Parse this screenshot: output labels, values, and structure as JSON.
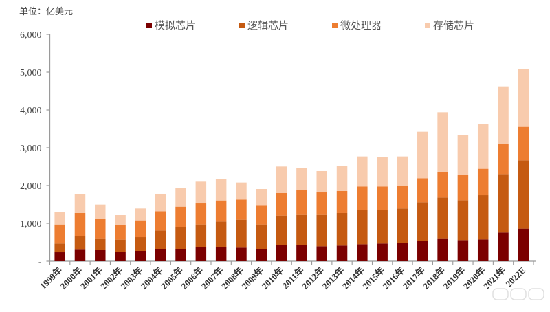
{
  "unit_label": "单位：亿美元",
  "legend": [
    {
      "label": "模拟芯片",
      "color": "#7B0000",
      "x": 213
    },
    {
      "label": "逻辑芯片",
      "color": "#C55A11",
      "x": 348
    },
    {
      "label": "微处理器",
      "color": "#ED7D31",
      "x": 483
    },
    {
      "label": "存储芯片",
      "color": "#F8CBAD",
      "x": 618
    }
  ],
  "chart_data": {
    "type": "bar",
    "stacked": true,
    "title": "",
    "unit": "单位：亿美元",
    "xlabel": "",
    "ylabel": "亿美元",
    "ylim": [
      0,
      6000
    ],
    "yticks": [
      0,
      1000,
      2000,
      3000,
      4000,
      5000,
      6000
    ],
    "ytick_labels": [
      "-",
      "1,000",
      "2,000",
      "3,000",
      "4,000",
      "5,000",
      "6,000"
    ],
    "grid": false,
    "legend_position": "top",
    "categories": [
      "1999年",
      "2000年",
      "2001年",
      "2002年",
      "2003年",
      "2004年",
      "2005年",
      "2006年",
      "2007年",
      "2008年",
      "2009年",
      "2010年",
      "2011年",
      "2012年",
      "2013年",
      "2014年",
      "2015年",
      "2016年",
      "2017年",
      "2018年",
      "2019年",
      "2020年",
      "2021年",
      "2022E"
    ],
    "series": [
      {
        "name": "模拟芯片",
        "color": "#7B0000",
        "values": [
          236,
          303,
          291,
          248,
          273,
          327,
          327,
          376,
          382,
          358,
          327,
          424,
          430,
          394,
          412,
          448,
          467,
          485,
          539,
          588,
          558,
          576,
          758,
          861
        ]
      },
      {
        "name": "逻辑芯片",
        "color": "#C55A11",
        "values": [
          231,
          364,
          297,
          322,
          363,
          485,
          582,
          594,
          666,
          739,
          643,
          782,
          794,
          830,
          861,
          910,
          891,
          909,
          1019,
          1097,
          1054,
          1169,
          1545,
          1806
        ]
      },
      {
        "name": "微处理器",
        "color": "#ED7D31",
        "values": [
          502,
          606,
          527,
          388,
          443,
          509,
          533,
          557,
          558,
          533,
          497,
          594,
          654,
          594,
          582,
          618,
          618,
          600,
          636,
          679,
          673,
          698,
          788,
          885
        ]
      },
      {
        "name": "存储芯片",
        "color": "#F8CBAD",
        "values": [
          322,
          496,
          382,
          260,
          315,
          461,
          485,
          576,
          570,
          449,
          442,
          703,
          589,
          564,
          672,
          794,
          775,
          776,
          1230,
          1575,
          1048,
          1175,
          1533,
          1539
        ]
      }
    ],
    "totals": [
      1291,
      1769,
      1497,
      1218,
      1394,
      1782,
      1927,
      2103,
      2176,
      2079,
      1909,
      2503,
      2467,
      2382,
      2527,
      2770,
      2751,
      2770,
      3424,
      3939,
      3333,
      3618,
      4624,
      5091
    ]
  }
}
